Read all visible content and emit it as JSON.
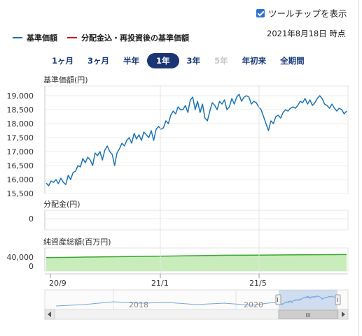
{
  "tooltip_toggle": {
    "label": "ツールチップを表示",
    "checked": true
  },
  "legend": [
    {
      "label": "基準価額",
      "color": "#1a73b8"
    },
    {
      "label": "分配金込・再投資後の基準価額",
      "color": "#cc1f1f"
    }
  ],
  "as_of": "2021年8月18日 時点",
  "periods": [
    {
      "label": "1ヶ月",
      "state": "normal"
    },
    {
      "label": "3ヶ月",
      "state": "normal"
    },
    {
      "label": "半年",
      "state": "normal"
    },
    {
      "label": "1年",
      "state": "active"
    },
    {
      "label": "3年",
      "state": "normal"
    },
    {
      "label": "5年",
      "state": "disabled"
    },
    {
      "label": "年初来",
      "state": "normal"
    },
    {
      "label": "全期間",
      "state": "normal"
    }
  ],
  "chart_data": [
    {
      "type": "line",
      "ylabel": "基準価額(円)",
      "ylim": [
        15500,
        19350
      ],
      "yticks": [
        15500,
        16000,
        16500,
        17000,
        17500,
        18000,
        18500,
        19000
      ],
      "ytick_labels": [
        "15,500",
        "16,000",
        "16,500",
        "17,000",
        "17,500",
        "18,000",
        "18,500",
        "19,000"
      ],
      "grid": true,
      "series": [
        {
          "name": "基準価額",
          "color": "#1a73b8",
          "values": [
            15870,
            15780,
            15950,
            15900,
            16000,
            15850,
            16050,
            15900,
            15820,
            16150,
            16000,
            16250,
            16300,
            16500,
            16450,
            16750,
            16600,
            16800,
            16700,
            16500,
            16950,
            16850,
            17000,
            16700,
            17050,
            17200,
            17000,
            16900,
            16500,
            16950,
            17100,
            17300,
            17200,
            17400,
            17500,
            17300,
            17650,
            17450,
            17600,
            17400,
            17700,
            17600,
            17500,
            17750,
            17400,
            17800,
            17900,
            17800,
            17850,
            18100,
            18000,
            18300,
            18450,
            18350,
            18600,
            18500,
            18500,
            18650,
            18400,
            18850,
            18950,
            18500,
            18800,
            18400,
            18700,
            18200,
            18100,
            18450,
            18750,
            18650,
            18500,
            18800,
            18700,
            18850,
            18500,
            18600,
            18900,
            18700,
            18950,
            19050,
            18800,
            18950,
            19000,
            18950,
            18700,
            18800,
            18750,
            18600,
            18500,
            18250,
            18000,
            17750,
            18100,
            18000,
            18250,
            18300,
            18200,
            18400,
            18500,
            18450,
            18550,
            18600,
            18550,
            18650,
            18800,
            18750,
            18900,
            18700,
            18850,
            18650,
            18750,
            18900,
            19000,
            18900,
            18700,
            18650,
            18550,
            18700,
            18550,
            18450,
            18550,
            18500,
            18350,
            18450
          ]
        }
      ]
    },
    {
      "type": "bar",
      "ylabel": "分配金(円)",
      "yticks": [
        0
      ],
      "values": [
        0
      ]
    },
    {
      "type": "area",
      "ylabel": "純資産総額(百万円)",
      "ylim": [
        0,
        60000
      ],
      "yticks": [
        0,
        40000
      ],
      "ytick_labels": [
        "0",
        "40,000"
      ],
      "values": [
        35000,
        36000,
        37000,
        38000,
        39000,
        40000,
        41000,
        41500,
        42000,
        42500,
        43000
      ]
    }
  ],
  "x_axis_labels": [
    "20/9",
    "21/1",
    "21/5"
  ],
  "navigator": {
    "labels": [
      "2018",
      "2020"
    ],
    "scroll_thumb_label": "III"
  }
}
